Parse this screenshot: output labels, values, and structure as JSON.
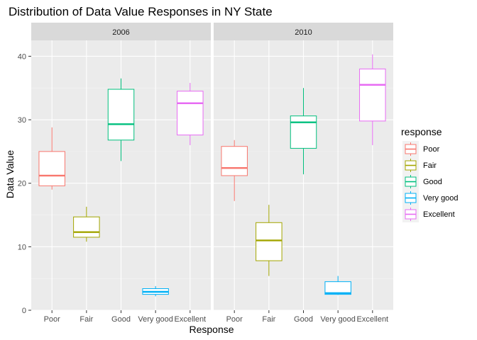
{
  "chart_data": {
    "type": "boxplot",
    "title": "Distribution of Data Value Responses in NY State",
    "xlabel": "Response",
    "ylabel": "Data Value",
    "ylim": [
      0,
      42.5
    ],
    "yticks": [
      0,
      10,
      20,
      30,
      40
    ],
    "categories": [
      "Poor",
      "Fair",
      "Good",
      "Very good",
      "Excellent"
    ],
    "colors": {
      "Poor": "#f8766d",
      "Fair": "#a3a500",
      "Good": "#00bf7d",
      "Very good": "#00b0f6",
      "Excellent": "#e76bf3"
    },
    "grid": true,
    "legend": {
      "title": "response",
      "position": "right"
    },
    "facets": [
      {
        "label": "2006",
        "boxes": [
          {
            "category": "Poor",
            "min": 19.0,
            "q1": 19.6,
            "median": 21.2,
            "q3": 25.0,
            "max": 28.8
          },
          {
            "category": "Fair",
            "min": 10.8,
            "q1": 11.5,
            "median": 12.3,
            "q3": 14.7,
            "max": 16.3
          },
          {
            "category": "Good",
            "min": 23.5,
            "q1": 26.8,
            "median": 29.3,
            "q3": 34.8,
            "max": 36.5
          },
          {
            "category": "Very good",
            "min": 2.2,
            "q1": 2.5,
            "median": 2.9,
            "q3": 3.4,
            "max": 3.8
          },
          {
            "category": "Excellent",
            "min": 26.0,
            "q1": 27.6,
            "median": 32.6,
            "q3": 34.5,
            "max": 35.8
          }
        ]
      },
      {
        "label": "2010",
        "boxes": [
          {
            "category": "Poor",
            "min": 17.2,
            "q1": 21.2,
            "median": 22.4,
            "q3": 25.8,
            "max": 26.8
          },
          {
            "category": "Fair",
            "min": 5.4,
            "q1": 7.8,
            "median": 11.0,
            "q3": 13.8,
            "max": 16.6
          },
          {
            "category": "Good",
            "min": 21.4,
            "q1": 25.5,
            "median": 29.6,
            "q3": 30.6,
            "max": 35.0
          },
          {
            "category": "Very good",
            "min": 2.4,
            "q1": 2.5,
            "median": 2.7,
            "q3": 4.5,
            "max": 5.4
          },
          {
            "category": "Excellent",
            "min": 26.0,
            "q1": 29.8,
            "median": 35.5,
            "q3": 38.0,
            "max": 40.3
          }
        ]
      }
    ]
  }
}
